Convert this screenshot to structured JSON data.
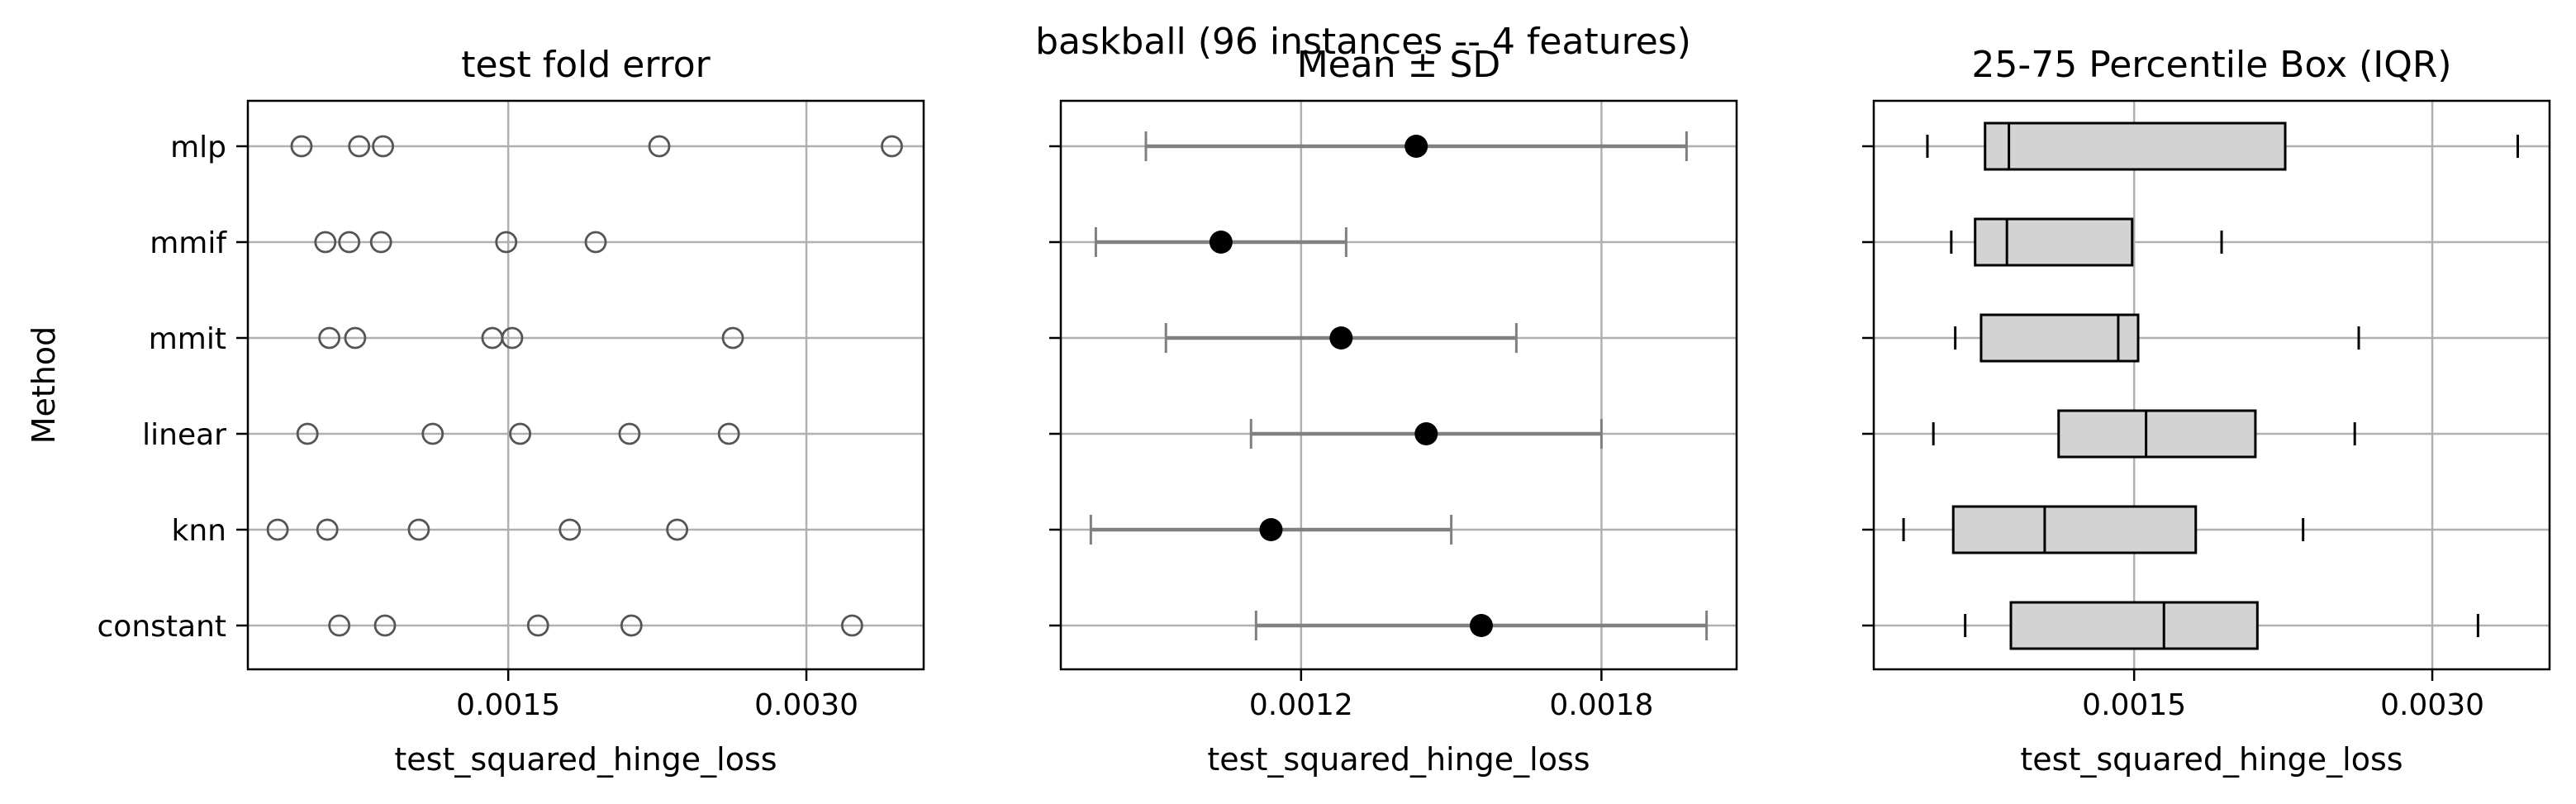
{
  "figure": {
    "suptitle": "baskball (96 instances -- 4 features)"
  },
  "chart_data": [
    {
      "type": "scatter",
      "title": "test fold error",
      "xlabel": "test_squared_hinge_loss",
      "ylabel": "Method",
      "categories": [
        "mlp",
        "mmif",
        "mmit",
        "linear",
        "knn",
        "constant"
      ],
      "xlim": [
        0.00019,
        0.00359
      ],
      "xticks": [
        0.0015,
        0.003
      ],
      "xtick_labels": [
        "0.0015",
        "0.0030"
      ],
      "grid": true,
      "marker": "open-circle",
      "series": [
        {
          "category": "mlp",
          "values": [
            0.00046,
            0.00075,
            0.00087,
            0.00226,
            0.00343
          ]
        },
        {
          "category": "mmif",
          "values": [
            0.00058,
            0.0007,
            0.00086,
            0.00149,
            0.00194
          ]
        },
        {
          "category": "mmit",
          "values": [
            0.0006,
            0.00073,
            0.00142,
            0.00152,
            0.00263
          ]
        },
        {
          "category": "linear",
          "values": [
            0.00049,
            0.00112,
            0.00156,
            0.00211,
            0.00261
          ]
        },
        {
          "category": "knn",
          "values": [
            0.00034,
            0.00059,
            0.00105,
            0.00181,
            0.00235
          ]
        },
        {
          "category": "constant",
          "values": [
            0.00065,
            0.00088,
            0.00165,
            0.00212,
            0.00323
          ]
        }
      ]
    },
    {
      "type": "errorbar",
      "title": "Mean ± SD",
      "xlabel": "test_squared_hinge_loss",
      "categories": [
        "mlp",
        "mmif",
        "mmit",
        "linear",
        "knn",
        "constant"
      ],
      "xlim": [
        0.00072,
        0.00207
      ],
      "xticks": [
        0.0012,
        0.0018
      ],
      "xtick_labels": [
        "0.0012",
        "0.0018"
      ],
      "grid": true,
      "series": [
        {
          "category": "mlp",
          "mean": 0.00143,
          "sd": 0.00054
        },
        {
          "category": "mmif",
          "mean": 0.00104,
          "sd": 0.00025
        },
        {
          "category": "mmit",
          "mean": 0.00128,
          "sd": 0.00035
        },
        {
          "category": "linear",
          "mean": 0.00145,
          "sd": 0.00035
        },
        {
          "category": "knn",
          "mean": 0.00114,
          "sd": 0.00036
        },
        {
          "category": "constant",
          "mean": 0.00156,
          "sd": 0.00045
        }
      ]
    },
    {
      "type": "box",
      "title": "25-75 Percentile Box (IQR)",
      "xlabel": "test_squared_hinge_loss",
      "categories": [
        "mlp",
        "mmif",
        "mmit",
        "linear",
        "knn",
        "constant"
      ],
      "xlim": [
        0.00019,
        0.00359
      ],
      "xticks": [
        0.0015,
        0.003
      ],
      "xtick_labels": [
        "0.0015",
        "0.0030"
      ],
      "grid": true,
      "series": [
        {
          "category": "mlp",
          "min": 0.00046,
          "q1": 0.00075,
          "median": 0.00087,
          "q3": 0.00226,
          "max": 0.00343
        },
        {
          "category": "mmif",
          "min": 0.00058,
          "q1": 0.0007,
          "median": 0.00086,
          "q3": 0.00149,
          "max": 0.00194
        },
        {
          "category": "mmit",
          "min": 0.0006,
          "q1": 0.00073,
          "median": 0.00142,
          "q3": 0.00152,
          "max": 0.00263
        },
        {
          "category": "linear",
          "min": 0.00049,
          "q1": 0.00112,
          "median": 0.00156,
          "q3": 0.00211,
          "max": 0.00261
        },
        {
          "category": "knn",
          "min": 0.00034,
          "q1": 0.00059,
          "median": 0.00105,
          "q3": 0.00181,
          "max": 0.00235
        },
        {
          "category": "constant",
          "min": 0.00065,
          "q1": 0.00088,
          "median": 0.00165,
          "q3": 0.00212,
          "max": 0.00323
        }
      ]
    }
  ]
}
